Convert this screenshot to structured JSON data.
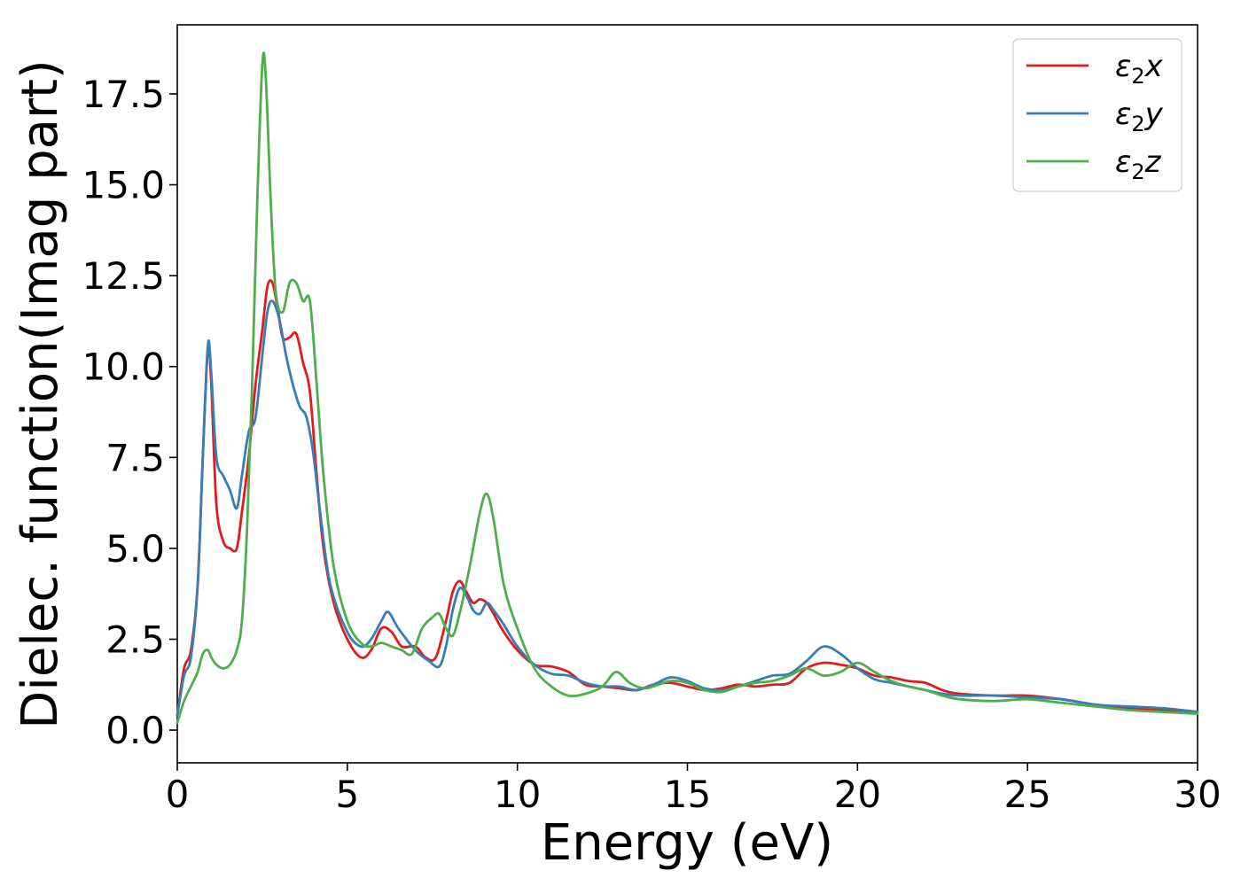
{
  "chart_data": {
    "type": "line",
    "title": "",
    "xlabel": "Energy (eV)",
    "ylabel": "Dielec. function(Imag part)",
    "xlim": [
      0,
      30
    ],
    "ylim": [
      -0.9,
      19.4
    ],
    "xticks": [
      0,
      5,
      10,
      15,
      20,
      25,
      30
    ],
    "xtick_labels": [
      "0",
      "5",
      "10",
      "15",
      "20",
      "25",
      "30"
    ],
    "yticks": [
      0.0,
      2.5,
      5.0,
      7.5,
      10.0,
      12.5,
      15.0,
      17.5
    ],
    "ytick_labels": [
      "0.0",
      "2.5",
      "5.0",
      "7.5",
      "10.0",
      "12.5",
      "15.0",
      "17.5"
    ],
    "grid": false,
    "legend_position": "top-right",
    "series": [
      {
        "name": "ε₂x",
        "legend_main": "ε",
        "legend_sub": "2",
        "legend_tail": "x",
        "color": "#e41a1c",
        "x": [
          0,
          0.2,
          0.4,
          0.6,
          0.75,
          0.9,
          1.0,
          1.15,
          1.35,
          1.55,
          1.75,
          1.9,
          2.1,
          2.3,
          2.5,
          2.65,
          2.8,
          2.95,
          3.1,
          3.3,
          3.5,
          3.7,
          3.9,
          4.1,
          4.3,
          4.6,
          5.0,
          5.4,
          5.7,
          6.0,
          6.3,
          6.6,
          7.0,
          7.3,
          7.6,
          7.9,
          8.1,
          8.3,
          8.5,
          8.7,
          8.9,
          9.1,
          9.3,
          9.6,
          10.0,
          10.5,
          11.0,
          11.5,
          12.0,
          12.5,
          13.0,
          13.5,
          14.0,
          14.5,
          15.0,
          15.5,
          16.0,
          16.5,
          17.0,
          17.5,
          18.0,
          18.5,
          19.0,
          19.5,
          20.0,
          20.5,
          21.0,
          21.5,
          22.0,
          22.5,
          23.0,
          24.0,
          25.0,
          26.0,
          27.0,
          28.0,
          29.0,
          30.0
        ],
        "y": [
          0.4,
          1.7,
          2.2,
          4.0,
          7.5,
          10.5,
          9.5,
          6.2,
          5.2,
          5.0,
          5.0,
          6.0,
          7.5,
          9.5,
          11.0,
          12.2,
          12.3,
          11.6,
          10.8,
          10.8,
          10.9,
          10.1,
          9.3,
          7.0,
          5.0,
          3.5,
          2.5,
          2.0,
          2.2,
          2.8,
          2.7,
          2.3,
          2.3,
          2.0,
          2.0,
          3.0,
          3.8,
          4.1,
          3.8,
          3.5,
          3.6,
          3.5,
          3.2,
          2.7,
          2.2,
          1.8,
          1.75,
          1.6,
          1.25,
          1.2,
          1.15,
          1.1,
          1.25,
          1.3,
          1.2,
          1.1,
          1.15,
          1.25,
          1.2,
          1.25,
          1.3,
          1.7,
          1.85,
          1.8,
          1.7,
          1.5,
          1.45,
          1.35,
          1.3,
          1.1,
          1.0,
          0.95,
          0.95,
          0.85,
          0.7,
          0.6,
          0.55,
          0.5
        ]
      },
      {
        "name": "ε₂y",
        "legend_main": "ε",
        "legend_sub": "2",
        "legend_tail": "y",
        "color": "#377eb8",
        "x": [
          0,
          0.2,
          0.4,
          0.6,
          0.75,
          0.9,
          1.0,
          1.15,
          1.35,
          1.55,
          1.75,
          1.9,
          2.1,
          2.3,
          2.5,
          2.65,
          2.8,
          3.0,
          3.2,
          3.4,
          3.6,
          3.8,
          4.0,
          4.2,
          4.5,
          5.0,
          5.4,
          5.7,
          6.0,
          6.2,
          6.5,
          7.0,
          7.4,
          7.7,
          7.9,
          8.1,
          8.3,
          8.5,
          8.7,
          8.9,
          9.1,
          9.3,
          9.6,
          10.0,
          10.5,
          11.0,
          11.5,
          12.0,
          12.5,
          13.0,
          13.5,
          14.0,
          14.5,
          15.0,
          15.5,
          16.0,
          16.5,
          17.0,
          17.5,
          18.0,
          18.5,
          19.0,
          19.5,
          20.0,
          20.5,
          21.0,
          21.5,
          22.0,
          22.5,
          23.0,
          24.0,
          25.0,
          26.0,
          27.0,
          28.0,
          29.0,
          30.0
        ],
        "y": [
          0.4,
          1.5,
          2.0,
          4.0,
          7.5,
          10.6,
          9.8,
          7.5,
          7.0,
          6.6,
          6.1,
          7.0,
          8.2,
          8.6,
          10.3,
          11.5,
          11.8,
          11.3,
          10.3,
          9.5,
          8.9,
          8.6,
          7.6,
          6.0,
          4.0,
          2.7,
          2.3,
          2.5,
          3.0,
          3.25,
          2.8,
          2.2,
          1.9,
          1.75,
          2.3,
          3.3,
          3.9,
          3.7,
          3.3,
          3.2,
          3.5,
          3.3,
          2.9,
          2.3,
          1.8,
          1.55,
          1.5,
          1.3,
          1.2,
          1.2,
          1.1,
          1.25,
          1.45,
          1.35,
          1.15,
          1.1,
          1.2,
          1.35,
          1.5,
          1.55,
          1.9,
          2.3,
          2.1,
          1.7,
          1.4,
          1.3,
          1.2,
          1.1,
          1.0,
          0.95,
          0.95,
          0.9,
          0.85,
          0.7,
          0.65,
          0.6,
          0.5
        ]
      },
      {
        "name": "ε₂z",
        "legend_main": "ε",
        "legend_sub": "2",
        "legend_tail": "z",
        "color": "#4daf4a",
        "x": [
          0,
          0.2,
          0.4,
          0.6,
          0.75,
          0.9,
          1.0,
          1.15,
          1.35,
          1.55,
          1.75,
          1.9,
          2.05,
          2.2,
          2.35,
          2.5,
          2.6,
          2.75,
          2.9,
          3.1,
          3.3,
          3.5,
          3.7,
          3.9,
          4.1,
          4.3,
          4.6,
          5.0,
          5.4,
          5.7,
          6.0,
          6.3,
          6.6,
          6.9,
          7.2,
          7.5,
          7.7,
          7.9,
          8.1,
          8.3,
          8.6,
          8.9,
          9.1,
          9.3,
          9.6,
          10.0,
          10.5,
          11.0,
          11.5,
          12.0,
          12.5,
          12.9,
          13.3,
          13.7,
          14.0,
          14.5,
          15.0,
          15.5,
          16.0,
          16.5,
          17.0,
          17.5,
          18.0,
          18.5,
          19.0,
          19.5,
          20.0,
          20.5,
          21.0,
          21.5,
          22.0,
          22.5,
          23.0,
          24.0,
          25.0,
          26.0,
          27.0,
          28.0,
          29.0,
          30.0
        ],
        "y": [
          0.2,
          0.8,
          1.2,
          1.6,
          2.1,
          2.2,
          2.0,
          1.8,
          1.7,
          1.8,
          2.2,
          3.0,
          5.5,
          9.5,
          14.5,
          18.3,
          18.0,
          14.5,
          12.0,
          11.5,
          12.3,
          12.3,
          11.8,
          11.8,
          9.5,
          7.0,
          4.5,
          3.0,
          2.4,
          2.3,
          2.4,
          2.3,
          2.2,
          2.1,
          2.8,
          3.1,
          3.2,
          2.8,
          2.6,
          3.2,
          4.5,
          6.0,
          6.5,
          5.8,
          4.0,
          2.8,
          1.7,
          1.2,
          0.95,
          1.0,
          1.2,
          1.6,
          1.3,
          1.15,
          1.2,
          1.35,
          1.3,
          1.1,
          1.05,
          1.2,
          1.3,
          1.35,
          1.5,
          1.7,
          1.5,
          1.6,
          1.85,
          1.6,
          1.35,
          1.2,
          1.1,
          0.95,
          0.85,
          0.8,
          0.85,
          0.75,
          0.65,
          0.55,
          0.5,
          0.45
        ]
      }
    ]
  }
}
